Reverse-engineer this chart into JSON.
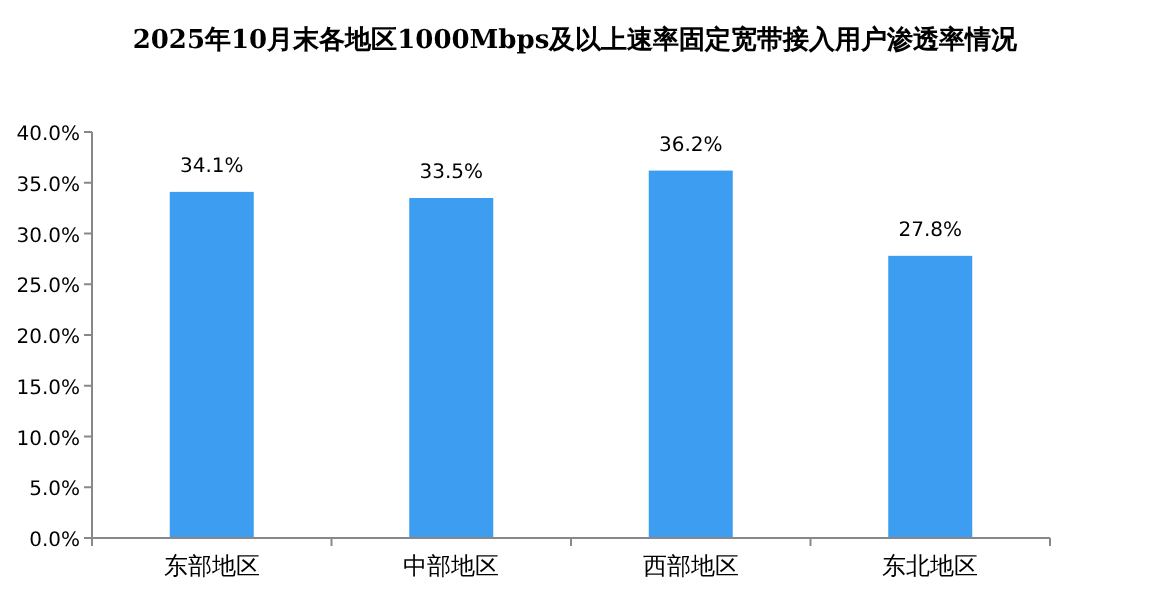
{
  "chart_data": {
    "type": "bar",
    "title": "2025年10月末各地区1000Mbps及以上速率固定宽带接入用户渗透率情况",
    "categories": [
      "东部地区",
      "中部地区",
      "西部地区",
      "东北地区"
    ],
    "values": [
      34.1,
      33.5,
      36.2,
      27.8
    ],
    "value_labels": [
      "34.1%",
      "33.5%",
      "36.2%",
      "27.8%"
    ],
    "color": "#3d9df0",
    "ylim": [
      0,
      40
    ],
    "yticks": [
      {
        "value": 0,
        "label": "0.0%"
      },
      {
        "value": 5,
        "label": "5.0%"
      },
      {
        "value": 10,
        "label": "10.0%"
      },
      {
        "value": 15,
        "label": "15.0%"
      },
      {
        "value": 20,
        "label": "20.0%"
      },
      {
        "value": 25,
        "label": "25.0%"
      },
      {
        "value": 30,
        "label": "30.0%"
      },
      {
        "value": 35,
        "label": "35.0%"
      },
      {
        "value": 40,
        "label": "40.0%"
      }
    ],
    "grid": false
  }
}
